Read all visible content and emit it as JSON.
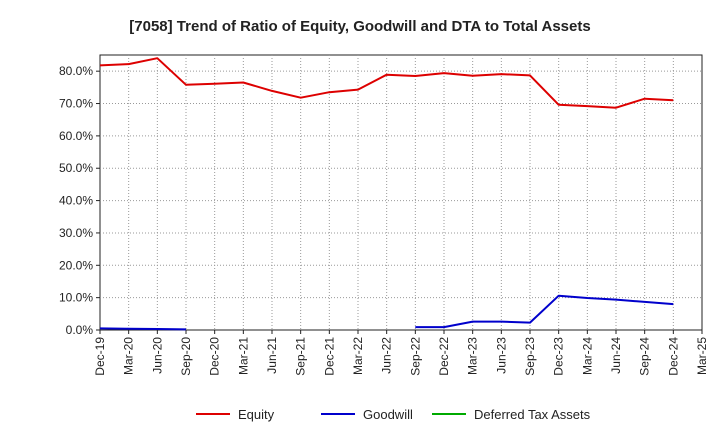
{
  "chart_data": {
    "type": "line",
    "title": "[7058]  Trend of Ratio of Equity, Goodwill and DTA to Total Assets",
    "xlabel": "",
    "ylabel": "",
    "x": [
      "Dec-19",
      "Mar-20",
      "Jun-20",
      "Sep-20",
      "Dec-20",
      "Mar-21",
      "Jun-21",
      "Sep-21",
      "Dec-21",
      "Mar-22",
      "Jun-22",
      "Sep-22",
      "Dec-22",
      "Mar-23",
      "Jun-23",
      "Sep-23",
      "Dec-23",
      "Mar-24",
      "Jun-24",
      "Sep-24",
      "Dec-24",
      "Mar-25"
    ],
    "ylim": [
      0,
      85
    ],
    "yticks": [
      0,
      10,
      20,
      30,
      40,
      50,
      60,
      70,
      80
    ],
    "ytick_labels": [
      "0.0%",
      "10.0%",
      "20.0%",
      "30.0%",
      "40.0%",
      "50.0%",
      "60.0%",
      "70.0%",
      "80.0%"
    ],
    "grid": true,
    "legend_position": "bottom",
    "series": [
      {
        "name": "Equity",
        "color": "#dd0000",
        "values": [
          81.8,
          82.2,
          84.0,
          75.8,
          76.1,
          76.5,
          73.9,
          71.8,
          73.5,
          74.3,
          78.9,
          78.5,
          79.4,
          78.6,
          79.1,
          78.7,
          69.6,
          69.2,
          68.7,
          71.5,
          71.0,
          null
        ]
      },
      {
        "name": "Goodwill",
        "color": "#0000cc",
        "values": [
          0.5,
          0.4,
          0.3,
          0.2,
          null,
          null,
          null,
          null,
          null,
          null,
          null,
          0.9,
          0.9,
          2.6,
          2.6,
          2.3,
          10.6,
          9.9,
          9.4,
          8.7,
          8.0,
          null
        ]
      },
      {
        "name": "Deferred Tax Assets",
        "color": "#00aa00",
        "values": [
          null,
          null,
          null,
          null,
          null,
          null,
          null,
          null,
          null,
          null,
          null,
          null,
          null,
          null,
          null,
          null,
          null,
          null,
          null,
          null,
          null,
          null
        ]
      }
    ]
  }
}
